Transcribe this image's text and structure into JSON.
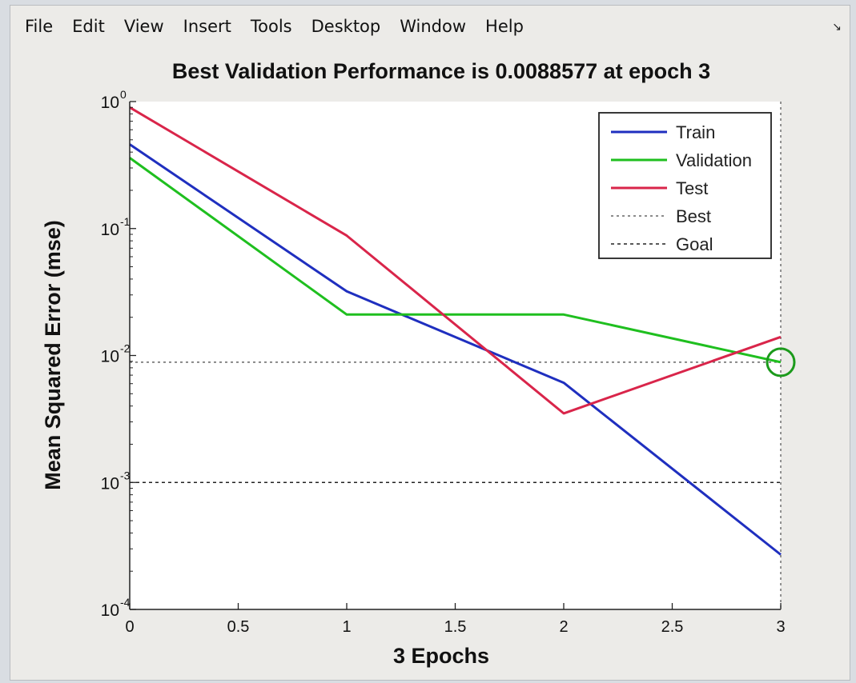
{
  "menu": [
    "File",
    "Edit",
    "View",
    "Insert",
    "Tools",
    "Desktop",
    "Window",
    "Help"
  ],
  "chart_data": {
    "type": "line",
    "title": "Best Validation Performance is 0.0088577 at epoch 3",
    "xlabel": "3 Epochs",
    "ylabel": "Mean Squared Error  (mse)",
    "xlim": [
      0,
      3
    ],
    "ylim": [
      0.0001,
      1
    ],
    "yscale": "log",
    "xticks": [
      "0",
      "0.5",
      "1",
      "1.5",
      "2",
      "2.5",
      "3"
    ],
    "yticks": [
      {
        "base": "10",
        "exp": "0",
        "value": 1
      },
      {
        "base": "10",
        "exp": "-1",
        "value": 0.1
      },
      {
        "base": "10",
        "exp": "-2",
        "value": 0.01
      },
      {
        "base": "10",
        "exp": "-3",
        "value": 0.001
      },
      {
        "base": "10",
        "exp": "-4",
        "value": 0.0001
      }
    ],
    "x": [
      0,
      1,
      2,
      3
    ],
    "series": [
      {
        "name": "Train",
        "color": "#1f2fbf",
        "values": [
          0.46,
          0.032,
          0.0061,
          0.00027
        ]
      },
      {
        "name": "Validation",
        "color": "#1fbf1f",
        "values": [
          0.36,
          0.021,
          0.021,
          0.0088577
        ]
      },
      {
        "name": "Test",
        "color": "#d9254a",
        "values": [
          0.9,
          0.088,
          0.0035,
          0.014
        ]
      }
    ],
    "best": {
      "name": "Best",
      "epoch": 3,
      "value": 0.0088577,
      "marker_color": "#1b9a1b"
    },
    "goal": {
      "name": "Goal",
      "value": 0.001
    },
    "legend": {
      "position": "top-right",
      "entries": [
        "Train",
        "Validation",
        "Test",
        "Best",
        "Goal"
      ]
    },
    "grid": false
  }
}
